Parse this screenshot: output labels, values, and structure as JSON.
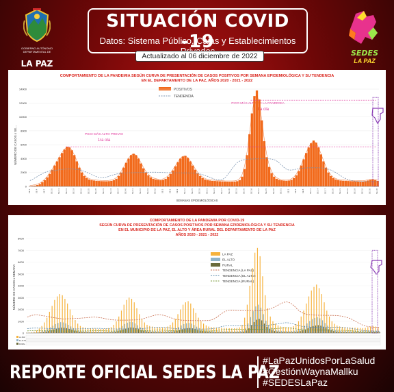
{
  "header": {
    "title": "SITUACIÓN COVID -19",
    "subtitle": "Datos: Sistema Público, Cajas y Establecimientos Privados",
    "updated": "Actualizado  al 06  diciembre  de 2022"
  },
  "logo_left": {
    "line1": "GOBIERNO AUTÓNOMO",
    "line2": "DEPARTAMENTAL DE",
    "name": "LA PAZ"
  },
  "logo_right": {
    "name": "SEDES",
    "sub": "LA PAZ"
  },
  "footer": {
    "main": "REPORTE OFICIAL SEDES LA PAZ",
    "hashtags": [
      "#LaPazUnidosPorLaSalud",
      "#GestiónWaynaMallku",
      "#SEDESLaPaz"
    ]
  },
  "colors": {
    "positivos": "#f26a1b",
    "la_paz": "#f6b23c",
    "el_alto": "#8fb3c9",
    "rural": "#6a6a3a",
    "tendencia": "#c76a4a",
    "annotation": "#e0389c",
    "title_red": "#d9241c"
  },
  "chart_data": [
    {
      "type": "bar",
      "title": "COMPORTAMIENTO DE LA PANDEMIA SEGÚN CURVA DE PRESENTACIÓN DE CASOS POSITIVOS POR SEMANA EPIDEMIOLÓGICA Y SU TENDENCIA EN EL DEPARTAMENTO DE LA PAZ, AÑOS 2020 - 2021 - 2022",
      "title_line1": "COMPORTAMIENTO DE LA PANDEMIA SEGÚN CURVA DE PRESENTACIÓN DE CASOS POSITIVOS POR SEMANA EPIDEMIOLÓGICA Y SU TENDENCIA",
      "title_line2": "EN EL DEPARTAMENTO DE LA PAZ, AÑOS 2020 - 2021 - 2022",
      "xlabel": "SEMANAS EPIDEMIOLÓGICAS",
      "ylabel": "NÚMERO DE CASOS x SE...",
      "ylim": [
        0,
        14000
      ],
      "yticks": [
        "0",
        "2000",
        "4000",
        "6000",
        "8000",
        "10000",
        "12000",
        "14000"
      ],
      "legend": [
        "POSITIVOS",
        "TENDENCIA"
      ],
      "annotations": [
        {
          "text": "PICO MÁS ALTO PREVIO",
          "label": "1ra ola"
        },
        {
          "text": "PICO MÁS ALTO DE LA PANDEMIA",
          "label": "4ta ola"
        }
      ],
      "peaks": [
        {
          "wave": 1,
          "approx_cases": 5700
        },
        {
          "wave": 2,
          "approx_cases": 4700
        },
        {
          "wave": 3,
          "approx_cases": 4400
        },
        {
          "wave": 4,
          "approx_cases": 13800
        },
        {
          "wave": 5,
          "approx_cases": 6600
        }
      ],
      "series": [
        {
          "name": "POSITIVOS",
          "values": [
            50,
            80,
            120,
            200,
            350,
            600,
            900,
            1300,
            1800,
            2400,
            3000,
            3600,
            4200,
            4800,
            5300,
            5700,
            5600,
            5200,
            4500,
            3600,
            2700,
            2000,
            1500,
            1200,
            1000,
            900,
            850,
            800,
            780,
            760,
            750,
            740,
            760,
            800,
            900,
            1100,
            1500,
            2000,
            2700,
            3400,
            4000,
            4500,
            4700,
            4500,
            4000,
            3300,
            2600,
            2000,
            1600,
            1300,
            1100,
            1000,
            950,
            900,
            950,
            1100,
            1400,
            1800,
            2300,
            2900,
            3500,
            4000,
            4300,
            4400,
            4100,
            3600,
            3000,
            2400,
            1900,
            1500,
            1200,
            1000,
            900,
            850,
            800,
            780,
            760,
            740,
            720,
            700,
            690,
            680,
            690,
            700,
            750,
            900,
            1400,
            2500,
            4500,
            7500,
            10500,
            13000,
            13800,
            12500,
            9500,
            6500,
            4200,
            2800,
            1900,
            1400,
            1100,
            950,
            880,
            840,
            820,
            850,
            950,
            1200,
            1600,
            2200,
            3000,
            3900,
            4800,
            5600,
            6200,
            6600,
            6300,
            5600,
            4600,
            3600,
            2700,
            2000,
            1500,
            1200,
            1000,
            900,
            850,
            820,
            800,
            780,
            760,
            750,
            740,
            730,
            720,
            710,
            760,
            850,
            950,
            1000,
            900,
            800
          ]
        }
      ]
    },
    {
      "type": "bar",
      "title": "COMPORTAMIENTO DE LA PANDEMIA POR COVID-19 SEGÚN CURVA DE PRESENTACIÓN DE CASOS POSITIVOS POR SEMANA EPIDEMIOLÓGICA Y SU TENDENCIA EN EL MUNICIPIO DE LA PAZ, EL ALTO Y ÁREA RURAL DEL DEPARTAMENTO DE LA PAZ AÑOS 2020 - 2021 - 2022",
      "title_line1": "COMPORTAMIENTO DE LA PANDEMIA POR COVID-19",
      "title_line2": "SEGÚN CURVA DE PRESENTACIÓN DE CASOS POSITIVOS POR SEMANA EPIDEMIOLÓGICA Y SU TENDENCIA",
      "title_line3": "EN EL  MUNICIPIO DE LA PAZ, EL ALTO Y ÁREA RURAL DEL DEPARTAMENTO DE LA PAZ",
      "title_line4": "AÑOS 2020 - 2021 - 2022",
      "ylabel": "NÚMERO DE CASOS x SEMANA",
      "ylim": [
        0,
        8000
      ],
      "yticks": [
        "0",
        "1000",
        "2000",
        "3000",
        "4000",
        "5000",
        "6000",
        "7000",
        "8000"
      ],
      "legend": [
        "LA PAZ",
        "EL ALTO",
        "RURAL",
        "TENDENCIA (LA PAZ)",
        "TENDENCIA (EL ALTO)",
        "TENDENCIA (RURAL)"
      ],
      "series": [
        {
          "name": "LA PAZ",
          "values": [
            30,
            50,
            80,
            120,
            220,
            380,
            600,
            900,
            1300,
            1800,
            2300,
            2800,
            3100,
            3300,
            3200,
            2900,
            2500,
            2000,
            1500,
            1100,
            800,
            600,
            500,
            450,
            420,
            400,
            380,
            370,
            360,
            350,
            360,
            380,
            420,
            500,
            700,
            1000,
            1400,
            1900,
            2400,
            2800,
            3000,
            2900,
            2600,
            2100,
            1600,
            1200,
            900,
            700,
            600,
            550,
            500,
            480,
            470,
            460,
            480,
            550,
            700,
            900,
            1200,
            1600,
            2000,
            2400,
            2600,
            2700,
            2500,
            2100,
            1700,
            1300,
            1000,
            800,
            650,
            550,
            500,
            480,
            460,
            450,
            440,
            430,
            420,
            410,
            400,
            410,
            430,
            480,
            700,
            1300,
            2400,
            4000,
            5500,
            6800,
            7200,
            6500,
            4800,
            3200,
            2100,
            1400,
            1000,
            800,
            650,
            560,
            520,
            500,
            490,
            510,
            580,
            750,
            1000,
            1400,
            1900,
            2500,
            3100,
            3600,
            3900,
            4100,
            3800,
            3300,
            2600,
            1900,
            1400,
            1000,
            780,
            640,
            560,
            520,
            500,
            480,
            470,
            460,
            450,
            440,
            430,
            420,
            440,
            500,
            560,
            600,
            550,
            480
          ]
        },
        {
          "name": "EL ALTO",
          "values": [
            10,
            15,
            25,
            40,
            70,
            110,
            170,
            250,
            350,
            480,
            620,
            760,
            860,
            920,
            900,
            820,
            700,
            560,
            420,
            310,
            230,
            180,
            150,
            140,
            130,
            125,
            120,
            118,
            115,
            112,
            115,
            120,
            135,
            160,
            220,
            320,
            450,
            600,
            760,
            880,
            950,
            920,
            820,
            660,
            500,
            380,
            290,
            230,
            200,
            180,
            165,
            160,
            155,
            150,
            158,
            180,
            230,
            300,
            400,
            520,
            650,
            760,
            830,
            860,
            800,
            680,
            540,
            420,
            320,
            260,
            210,
            180,
            165,
            160,
            155,
            150,
            148,
            145,
            142,
            140,
            138,
            140,
            148,
            165,
            240,
            450,
            820,
            1350,
            1850,
            2250,
            2400,
            2150,
            1600,
            1050,
            700,
            470,
            340,
            270,
            220,
            190,
            175,
            168,
            165,
            172,
            195,
            250,
            330,
            460,
            620,
            820,
            1020,
            1180,
            1280,
            1340,
            1250,
            1080,
            850,
            630,
            460,
            340,
            260,
            215,
            190,
            175,
            168,
            162,
            158,
            155,
            152,
            150,
            147,
            144,
            150,
            170,
            190,
            200,
            185,
            160
          ]
        },
        {
          "name": "RURAL",
          "values": [
            5,
            8,
            12,
            20,
            35,
            55,
            85,
            125,
            175,
            240,
            310,
            380,
            430,
            460,
            450,
            410,
            350,
            280,
            210,
            155,
            115,
            90,
            75,
            70,
            65,
            62,
            60,
            59,
            58,
            56,
            58,
            60,
            68,
            80,
            110,
            160,
            225,
            300,
            380,
            440,
            475,
            460,
            410,
            330,
            250,
            190,
            145,
            115,
            100,
            90,
            82,
            80,
            78,
            75,
            79,
            90,
            115,
            150,
            200,
            260,
            325,
            380,
            415,
            430,
            400,
            340,
            270,
            210,
            160,
            130,
            105,
            90,
            82,
            80,
            78,
            75,
            74,
            72,
            71,
            70,
            69,
            70,
            74,
            82,
            120,
            225,
            410,
            675,
            925,
            1125,
            1200,
            1075,
            800,
            525,
            350,
            235,
            170,
            135,
            110,
            95,
            88,
            84,
            82,
            86,
            98,
            125,
            165,
            230,
            310,
            410,
            510,
            590,
            640,
            670,
            625,
            540,
            425,
            315,
            230,
            170,
            130,
            108,
            95,
            88,
            84,
            81,
            79,
            78,
            76,
            75,
            74,
            72,
            75,
            85,
            95,
            100,
            92,
            80
          ]
        }
      ]
    }
  ]
}
